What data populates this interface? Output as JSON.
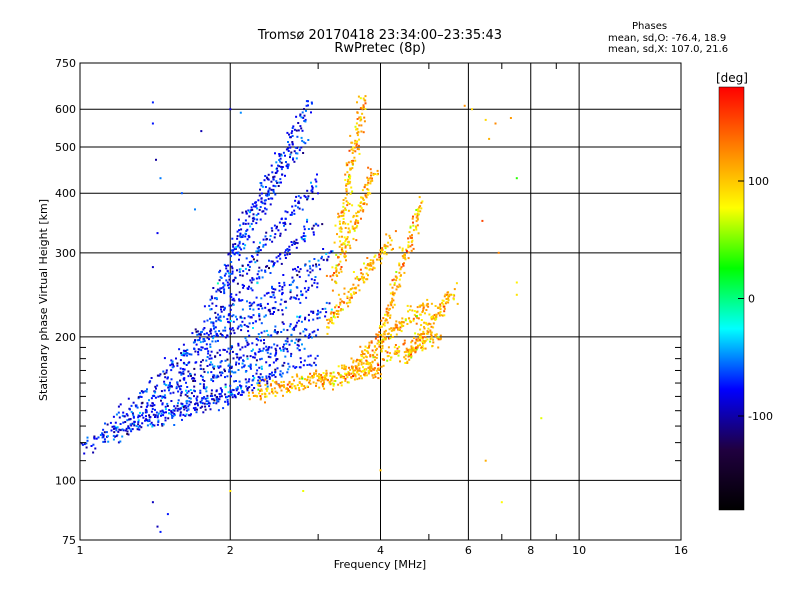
{
  "header": {
    "title": "Tromsø 20170418 23:34:00–23:35:43",
    "subtitle": "RwPretec (8p)"
  },
  "stats": {
    "heading": "Phases",
    "line1": "mean, sd,O: -76.4, 18.9",
    "line2": "mean, sd,X: 107.0, 21.6"
  },
  "chart_data": {
    "type": "scatter",
    "title": "Tromsø 20170418 23:34:00–23:35:43",
    "subtitle": "RwPretec (8p)",
    "xlabel": "Frequency [MHz]",
    "ylabel": "Stationary phase Virtual Height [km]",
    "x_scale": "log",
    "y_scale": "log",
    "xlim": [
      1,
      16
    ],
    "ylim": [
      75,
      750
    ],
    "x_ticks": [
      1,
      2,
      4,
      6,
      8,
      10,
      16
    ],
    "x_tick_labels": [
      "1",
      "2",
      "4",
      "6",
      "8",
      "10",
      "16"
    ],
    "x_minor_ticks": [
      3,
      5,
      7,
      9
    ],
    "y_ticks": [
      75,
      100,
      200,
      300,
      400,
      500,
      600,
      750
    ],
    "y_tick_labels": [
      "75",
      "100",
      "200",
      "300",
      "400",
      "500",
      "600",
      "750"
    ],
    "y_minor_ticks": [
      110,
      120,
      130,
      140,
      150,
      160,
      170,
      180,
      190
    ],
    "grid": true,
    "colorbar": {
      "label": "[deg]",
      "range": [
        -180,
        180
      ],
      "ticks": [
        100,
        0,
        -100
      ],
      "tick_labels": [
        "100",
        "0",
        "-100"
      ],
      "colors": [
        "#ff0000",
        "#ff8000",
        "#ffff00",
        "#00ff00",
        "#00ffff",
        "#0000ff",
        "#200040",
        "#000000"
      ]
    },
    "series": [
      {
        "mode": "O",
        "mean_phase_deg": -76.4,
        "sd_phase_deg": 18.9,
        "traces": [
          {
            "f0": 1.0,
            "f1": 2.1,
            "h0": 118,
            "h1": 152
          },
          {
            "f0": 1.1,
            "f1": 2.5,
            "h0": 125,
            "h1": 165
          },
          {
            "f0": 1.15,
            "f1": 3.0,
            "h0": 132,
            "h1": 178
          },
          {
            "f0": 1.2,
            "f1": 2.8,
            "h0": 140,
            "h1": 190
          },
          {
            "f0": 1.3,
            "f1": 3.0,
            "h0": 150,
            "h1": 205
          },
          {
            "f0": 1.4,
            "f1": 3.2,
            "h0": 160,
            "h1": 230
          },
          {
            "f0": 1.5,
            "f1": 3.0,
            "h0": 172,
            "h1": 260
          },
          {
            "f0": 1.6,
            "f1": 3.2,
            "h0": 185,
            "h1": 300
          },
          {
            "f0": 1.7,
            "f1": 3.0,
            "h0": 200,
            "h1": 350
          },
          {
            "f0": 1.8,
            "f1": 3.0,
            "h0": 230,
            "h1": 420
          },
          {
            "f0": 1.9,
            "f1": 2.8,
            "h0": 260,
            "h1": 520
          },
          {
            "f0": 2.0,
            "f1": 2.9,
            "h0": 300,
            "h1": 620
          }
        ],
        "scattered_points": [
          {
            "x": 1.4,
            "y": 620
          },
          {
            "x": 1.4,
            "y": 560
          },
          {
            "x": 1.42,
            "y": 470
          },
          {
            "x": 1.45,
            "y": 430
          },
          {
            "x": 1.43,
            "y": 330
          },
          {
            "x": 1.4,
            "y": 280
          },
          {
            "x": 1.6,
            "y": 400
          },
          {
            "x": 1.7,
            "y": 370
          },
          {
            "x": 1.75,
            "y": 540
          },
          {
            "x": 2.0,
            "y": 600
          },
          {
            "x": 2.1,
            "y": 590
          },
          {
            "x": 1.4,
            "y": 90
          },
          {
            "x": 1.43,
            "y": 80
          },
          {
            "x": 1.45,
            "y": 78
          },
          {
            "x": 1.5,
            "y": 85
          }
        ]
      },
      {
        "mode": "X",
        "mean_phase_deg": 107.0,
        "sd_phase_deg": 21.6,
        "traces": [
          {
            "f0": 2.2,
            "f1": 3.1,
            "h0": 152,
            "h1": 165
          },
          {
            "f0": 3.0,
            "f1": 4.0,
            "h0": 162,
            "h1": 170
          },
          {
            "f0": 3.4,
            "f1": 5.3,
            "h0": 170,
            "h1": 200
          },
          {
            "f0": 3.6,
            "f1": 5.0,
            "h0": 180,
            "h1": 235
          },
          {
            "f0": 3.1,
            "f1": 4.2,
            "h0": 210,
            "h1": 320
          },
          {
            "f0": 3.2,
            "f1": 3.9,
            "h0": 260,
            "h1": 450
          },
          {
            "f0": 3.3,
            "f1": 3.7,
            "h0": 320,
            "h1": 640
          },
          {
            "f0": 4.0,
            "f1": 4.8,
            "h0": 200,
            "h1": 380
          },
          {
            "f0": 4.5,
            "f1": 5.6,
            "h0": 180,
            "h1": 250
          }
        ],
        "scattered_points": [
          {
            "x": 5.9,
            "y": 610
          },
          {
            "x": 6.1,
            "y": 600
          },
          {
            "x": 6.5,
            "y": 570
          },
          {
            "x": 6.8,
            "y": 560
          },
          {
            "x": 7.3,
            "y": 575
          },
          {
            "x": 6.6,
            "y": 520
          },
          {
            "x": 7.5,
            "y": 430
          },
          {
            "x": 6.4,
            "y": 350
          },
          {
            "x": 6.9,
            "y": 300
          },
          {
            "x": 7.5,
            "y": 260
          },
          {
            "x": 7.5,
            "y": 245
          },
          {
            "x": 6.5,
            "y": 110
          },
          {
            "x": 7.0,
            "y": 90
          },
          {
            "x": 8.4,
            "y": 135
          },
          {
            "x": 4.0,
            "y": 105
          },
          {
            "x": 2.8,
            "y": 95
          },
          {
            "x": 2.0,
            "y": 95
          }
        ]
      }
    ]
  }
}
